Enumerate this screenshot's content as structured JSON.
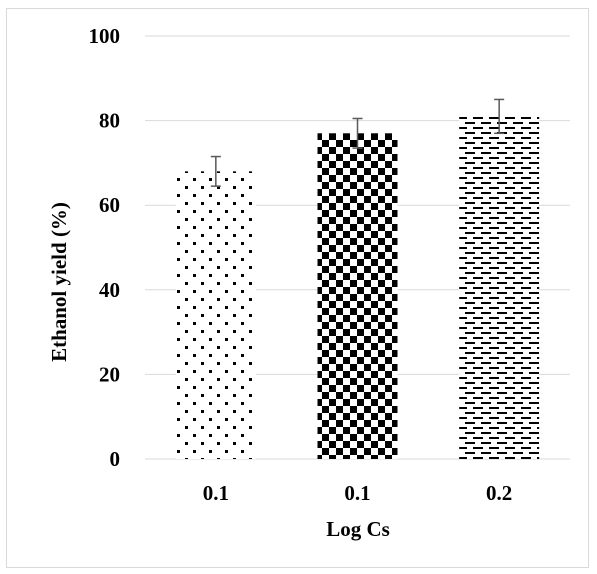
{
  "chart_data": {
    "type": "bar",
    "title": "",
    "xlabel": "Log Cs",
    "ylabel": "Ethanol yield (%)",
    "categories": [
      "0.1",
      "0.1",
      "0.2"
    ],
    "values": [
      68,
      77,
      81
    ],
    "error": [
      3.5,
      3.5,
      4
    ],
    "patterns": [
      "dots",
      "checker",
      "dashes"
    ],
    "ylim": [
      0,
      100
    ],
    "yticks": [
      "0",
      "20",
      "40",
      "60",
      "80",
      "100"
    ],
    "grid": true,
    "legend": "none",
    "colors": {
      "gridline": "#d9d9d9",
      "bar": "#000000",
      "error_bar": "#595959"
    }
  }
}
